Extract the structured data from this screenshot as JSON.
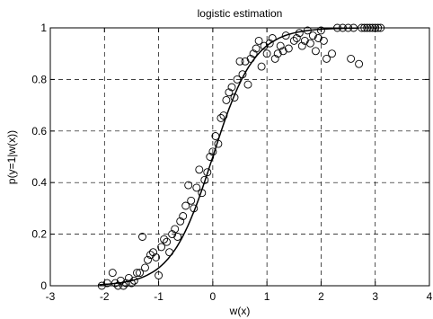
{
  "chart_data": {
    "type": "scatter",
    "title": "logistic estimation",
    "xlabel": "w(x)",
    "ylabel": "p(y=1|w(x))",
    "xlim": [
      -3,
      4
    ],
    "ylim": [
      0,
      1
    ],
    "xticks": [
      "-3",
      "-2",
      "-1",
      "0",
      "1",
      "2",
      "3",
      "4"
    ],
    "yticks": [
      "0",
      "0.2",
      "0.4",
      "0.6",
      "0.8",
      "1"
    ],
    "grid": true,
    "series": [
      {
        "kind": "scatter",
        "marker": "open-circle",
        "points": [
          [
            -2.05,
            0.0
          ],
          [
            -1.95,
            0.01
          ],
          [
            -1.85,
            0.05
          ],
          [
            -1.8,
            0.01
          ],
          [
            -1.75,
            0.0
          ],
          [
            -1.7,
            0.02
          ],
          [
            -1.65,
            0.0
          ],
          [
            -1.6,
            0.01
          ],
          [
            -1.55,
            0.03
          ],
          [
            -1.5,
            0.01
          ],
          [
            -1.45,
            0.02
          ],
          [
            -1.4,
            0.05
          ],
          [
            -1.35,
            0.05
          ],
          [
            -1.3,
            0.19
          ],
          [
            -1.25,
            0.07
          ],
          [
            -1.2,
            0.1
          ],
          [
            -1.15,
            0.12
          ],
          [
            -1.1,
            0.13
          ],
          [
            -1.05,
            0.11
          ],
          [
            -1.0,
            0.04
          ],
          [
            -0.95,
            0.15
          ],
          [
            -0.9,
            0.18
          ],
          [
            -0.85,
            0.17
          ],
          [
            -0.8,
            0.13
          ],
          [
            -0.75,
            0.2
          ],
          [
            -0.7,
            0.22
          ],
          [
            -0.65,
            0.19
          ],
          [
            -0.6,
            0.25
          ],
          [
            -0.55,
            0.27
          ],
          [
            -0.5,
            0.31
          ],
          [
            -0.45,
            0.39
          ],
          [
            -0.4,
            0.33
          ],
          [
            -0.35,
            0.3
          ],
          [
            -0.3,
            0.38
          ],
          [
            -0.25,
            0.45
          ],
          [
            -0.2,
            0.36
          ],
          [
            -0.15,
            0.41
          ],
          [
            -0.1,
            0.44
          ],
          [
            -0.05,
            0.5
          ],
          [
            0.0,
            0.52
          ],
          [
            0.05,
            0.58
          ],
          [
            0.1,
            0.55
          ],
          [
            0.15,
            0.65
          ],
          [
            0.2,
            0.66
          ],
          [
            0.25,
            0.72
          ],
          [
            0.3,
            0.75
          ],
          [
            0.35,
            0.77
          ],
          [
            0.4,
            0.73
          ],
          [
            0.45,
            0.8
          ],
          [
            0.5,
            0.87
          ],
          [
            0.55,
            0.82
          ],
          [
            0.6,
            0.87
          ],
          [
            0.65,
            0.78
          ],
          [
            0.7,
            0.88
          ],
          [
            0.75,
            0.9
          ],
          [
            0.8,
            0.92
          ],
          [
            0.85,
            0.95
          ],
          [
            0.9,
            0.85
          ],
          [
            0.95,
            0.93
          ],
          [
            1.0,
            0.9
          ],
          [
            1.05,
            0.94
          ],
          [
            1.1,
            0.96
          ],
          [
            1.15,
            0.88
          ],
          [
            1.2,
            0.9
          ],
          [
            1.25,
            0.93
          ],
          [
            1.3,
            0.91
          ],
          [
            1.35,
            0.97
          ],
          [
            1.4,
            0.92
          ],
          [
            1.5,
            0.95
          ],
          [
            1.55,
            0.96
          ],
          [
            1.6,
            0.98
          ],
          [
            1.65,
            0.93
          ],
          [
            1.7,
            0.95
          ],
          [
            1.75,
            0.99
          ],
          [
            1.8,
            0.94
          ],
          [
            1.85,
            0.97
          ],
          [
            1.9,
            0.91
          ],
          [
            1.95,
            0.96
          ],
          [
            2.0,
            0.99
          ],
          [
            2.05,
            0.95
          ],
          [
            2.1,
            0.88
          ],
          [
            2.2,
            0.9
          ],
          [
            2.3,
            1.0
          ],
          [
            2.4,
            1.0
          ],
          [
            2.5,
            1.0
          ],
          [
            2.55,
            0.88
          ],
          [
            2.6,
            1.0
          ],
          [
            2.7,
            0.86
          ],
          [
            2.75,
            1.0
          ],
          [
            2.8,
            1.0
          ],
          [
            2.85,
            1.0
          ],
          [
            2.9,
            1.0
          ],
          [
            2.95,
            1.0
          ],
          [
            3.0,
            1.0
          ],
          [
            3.05,
            1.0
          ],
          [
            3.1,
            1.0
          ]
        ]
      },
      {
        "kind": "line",
        "curve": "logistic",
        "midpoint": 0.0,
        "slope": 2.6,
        "x_range": [
          -2.1,
          2.7
        ]
      }
    ]
  }
}
